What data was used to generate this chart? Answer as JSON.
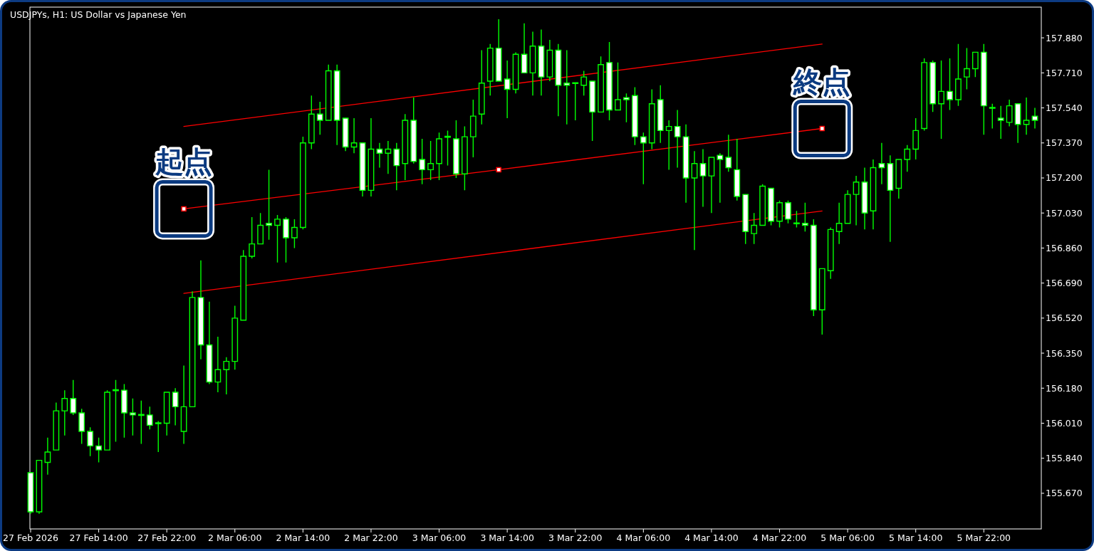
{
  "chart_data": {
    "type": "candlestick",
    "title": "USDJPYs, H1:  US Dollar vs Japanese Yen",
    "color": "#00ff00",
    "categories": [
      "27 Feb 2026",
      null,
      null,
      null,
      null,
      null,
      null,
      null,
      "27 Feb 14:00",
      null,
      null,
      null,
      null,
      null,
      null,
      null,
      "27 Feb 22:00",
      null,
      null,
      null,
      null,
      null,
      null,
      null,
      "2 Mar 06:00",
      null,
      null,
      null,
      null,
      null,
      null,
      null,
      "2 Mar 14:00",
      null,
      null,
      null,
      null,
      null,
      null,
      null,
      "2 Mar 22:00",
      null,
      null,
      null,
      null,
      null,
      null,
      null,
      "3 Mar 06:00",
      null,
      null,
      null,
      null,
      null,
      null,
      null,
      "3 Mar 14:00",
      null,
      null,
      null,
      null,
      null,
      null,
      null,
      "3 Mar 22:00",
      null,
      null,
      null,
      null,
      null,
      null,
      null,
      "4 Mar 06:00",
      null,
      null,
      null,
      null,
      null,
      null,
      null,
      "4 Mar 14:00",
      null,
      null,
      null,
      null,
      null,
      null,
      null,
      "4 Mar 22:00",
      null,
      null,
      null,
      null,
      null,
      null,
      null,
      "5 Mar 06:00",
      null,
      null,
      null,
      null,
      null,
      null,
      null,
      "5 Mar 14:00",
      null,
      null,
      null,
      null,
      null,
      null,
      null,
      "5 Mar 22:00",
      null,
      null,
      null,
      null,
      null,
      null
    ],
    "ohlc": [
      [
        155.77,
        155.77,
        155.57,
        155.58
      ],
      [
        155.58,
        155.83,
        155.57,
        155.83
      ],
      [
        155.82,
        155.94,
        155.76,
        155.87
      ],
      [
        155.88,
        156.11,
        155.88,
        156.07
      ],
      [
        156.07,
        156.17,
        155.95,
        156.13
      ],
      [
        156.13,
        156.22,
        156.05,
        156.06
      ],
      [
        156.06,
        156.08,
        155.91,
        155.97
      ],
      [
        155.97,
        155.99,
        155.85,
        155.9
      ],
      [
        155.9,
        155.94,
        155.82,
        155.88
      ],
      [
        155.88,
        156.17,
        155.88,
        156.16
      ],
      [
        156.17,
        156.22,
        155.92,
        156.17
      ],
      [
        156.17,
        156.2,
        155.94,
        156.06
      ],
      [
        156.06,
        156.13,
        155.95,
        156.05
      ],
      [
        156.05,
        156.12,
        155.91,
        156.05
      ],
      [
        156.05,
        156.09,
        155.98,
        156.0
      ],
      [
        156.01,
        156.02,
        155.87,
        156.01
      ],
      [
        156.01,
        156.16,
        155.95,
        156.16
      ],
      [
        156.16,
        156.18,
        156.0,
        156.09
      ],
      [
        155.97,
        156.29,
        155.91,
        156.09
      ],
      [
        156.09,
        156.65,
        156.09,
        156.62
      ],
      [
        156.62,
        156.8,
        156.32,
        156.39
      ],
      [
        156.39,
        156.6,
        156.2,
        156.21
      ],
      [
        156.21,
        156.43,
        156.16,
        156.27
      ],
      [
        156.27,
        156.33,
        156.15,
        156.31
      ],
      [
        156.31,
        156.58,
        156.27,
        156.52
      ],
      [
        156.51,
        156.85,
        156.51,
        156.82
      ],
      [
        156.82,
        157.01,
        156.81,
        156.88
      ],
      [
        156.88,
        157.03,
        156.88,
        156.97
      ],
      [
        156.98,
        157.24,
        156.9,
        156.97
      ],
      [
        156.97,
        157.02,
        156.79,
        157.0
      ],
      [
        157.0,
        157.01,
        156.79,
        156.91
      ],
      [
        156.91,
        157.0,
        156.86,
        156.96
      ],
      [
        156.96,
        157.4,
        156.95,
        157.37
      ],
      [
        157.37,
        157.6,
        157.34,
        157.51
      ],
      [
        157.51,
        157.57,
        157.41,
        157.48
      ],
      [
        157.48,
        157.75,
        157.48,
        157.72
      ],
      [
        157.72,
        157.75,
        157.36,
        157.48
      ],
      [
        157.49,
        157.49,
        157.33,
        157.35
      ],
      [
        157.35,
        157.49,
        157.32,
        157.37
      ],
      [
        157.37,
        157.37,
        157.11,
        157.14
      ],
      [
        157.14,
        157.49,
        157.11,
        157.34
      ],
      [
        157.34,
        157.37,
        157.25,
        157.32
      ],
      [
        157.32,
        157.38,
        157.22,
        157.34
      ],
      [
        157.34,
        157.37,
        157.14,
        157.26
      ],
      [
        157.27,
        157.51,
        157.19,
        157.48
      ],
      [
        157.48,
        157.59,
        157.27,
        157.28
      ],
      [
        157.29,
        157.39,
        157.17,
        157.24
      ],
      [
        157.24,
        157.38,
        157.19,
        157.27
      ],
      [
        157.27,
        157.42,
        157.19,
        157.39
      ],
      [
        157.4,
        157.43,
        157.26,
        157.4
      ],
      [
        157.39,
        157.48,
        157.2,
        157.22
      ],
      [
        157.22,
        157.45,
        157.14,
        157.4
      ],
      [
        157.4,
        157.58,
        157.3,
        157.5
      ],
      [
        157.51,
        157.82,
        157.46,
        157.66
      ],
      [
        157.67,
        157.85,
        157.6,
        157.83
      ],
      [
        157.83,
        157.97,
        157.67,
        157.67
      ],
      [
        157.68,
        157.77,
        157.49,
        157.63
      ],
      [
        157.63,
        157.81,
        157.61,
        157.8
      ],
      [
        157.8,
        157.95,
        157.71,
        157.71
      ],
      [
        157.71,
        157.91,
        157.6,
        157.84
      ],
      [
        157.84,
        157.92,
        157.6,
        157.69
      ],
      [
        157.69,
        157.87,
        157.67,
        157.82
      ],
      [
        157.82,
        157.85,
        157.5,
        157.65
      ],
      [
        157.66,
        157.82,
        157.46,
        157.65
      ],
      [
        157.66,
        157.66,
        157.48,
        157.66
      ],
      [
        157.65,
        157.72,
        157.6,
        157.69
      ],
      [
        157.67,
        157.67,
        157.38,
        157.52
      ],
      [
        157.52,
        157.79,
        157.52,
        157.75
      ],
      [
        157.76,
        157.86,
        157.48,
        157.53
      ],
      [
        157.53,
        157.76,
        157.53,
        157.58
      ],
      [
        157.59,
        157.61,
        157.47,
        157.58
      ],
      [
        157.6,
        157.64,
        157.36,
        157.4
      ],
      [
        157.4,
        157.42,
        157.17,
        157.37
      ],
      [
        157.37,
        157.63,
        157.34,
        157.56
      ],
      [
        157.58,
        157.65,
        157.37,
        157.43
      ],
      [
        157.43,
        157.48,
        157.24,
        157.45
      ],
      [
        157.45,
        157.53,
        157.25,
        157.4
      ],
      [
        157.4,
        157.46,
        157.08,
        157.2
      ],
      [
        157.2,
        157.33,
        156.85,
        157.27
      ],
      [
        157.27,
        157.34,
        157.06,
        157.21
      ],
      [
        157.21,
        157.3,
        157.03,
        157.3
      ],
      [
        157.31,
        157.32,
        157.08,
        157.29
      ],
      [
        157.3,
        157.41,
        157.23,
        157.25
      ],
      [
        157.24,
        157.39,
        157.09,
        157.11
      ],
      [
        157.12,
        157.12,
        156.88,
        156.94
      ],
      [
        156.93,
        157.03,
        156.88,
        156.97
      ],
      [
        156.97,
        157.17,
        156.97,
        157.16
      ],
      [
        157.15,
        157.15,
        156.97,
        156.99
      ],
      [
        156.99,
        157.09,
        156.96,
        157.08
      ],
      [
        157.08,
        157.09,
        156.98,
        157.0
      ],
      [
        156.98,
        157.04,
        156.96,
        156.98
      ],
      [
        156.98,
        157.08,
        156.94,
        156.97
      ],
      [
        156.97,
        157.0,
        156.53,
        156.56
      ],
      [
        156.56,
        156.76,
        156.44,
        156.76
      ],
      [
        156.75,
        156.96,
        156.71,
        156.95
      ],
      [
        156.94,
        157.08,
        156.88,
        156.98
      ],
      [
        156.98,
        157.14,
        156.98,
        157.12
      ],
      [
        157.12,
        157.21,
        156.97,
        157.18
      ],
      [
        157.18,
        157.25,
        156.95,
        157.03
      ],
      [
        157.04,
        157.29,
        156.95,
        157.25
      ],
      [
        157.27,
        157.37,
        157.17,
        157.25
      ],
      [
        157.27,
        157.31,
        156.89,
        157.14
      ],
      [
        157.15,
        157.29,
        157.1,
        157.29
      ],
      [
        157.29,
        157.36,
        157.23,
        157.34
      ],
      [
        157.34,
        157.49,
        157.29,
        157.43
      ],
      [
        157.44,
        157.78,
        157.43,
        157.76
      ],
      [
        157.76,
        157.77,
        157.52,
        157.56
      ],
      [
        157.56,
        157.77,
        157.39,
        157.62
      ],
      [
        157.62,
        157.78,
        157.53,
        157.58
      ],
      [
        157.58,
        157.85,
        157.55,
        157.68
      ],
      [
        157.69,
        157.83,
        157.63,
        157.73
      ],
      [
        157.73,
        157.81,
        157.69,
        157.81
      ],
      [
        157.81,
        157.85,
        157.41,
        157.55
      ],
      [
        157.54,
        157.56,
        157.44,
        157.54
      ],
      [
        157.49,
        157.55,
        157.39,
        157.48
      ],
      [
        157.47,
        157.58,
        157.45,
        157.55
      ],
      [
        157.56,
        157.56,
        157.37,
        157.46
      ],
      [
        157.46,
        157.59,
        157.41,
        157.48
      ],
      [
        157.5,
        157.54,
        157.44,
        157.48
      ]
    ],
    "series": [
      {
        "type": "line",
        "color": "#ff0000",
        "values": [
          null,
          null,
          null,
          null,
          null,
          null,
          null,
          null,
          null,
          null,
          null,
          null,
          null,
          null,
          null,
          null,
          null,
          null,
          157.45,
          null,
          null,
          null,
          null,
          null,
          null,
          null,
          null,
          null,
          null,
          null,
          null,
          null,
          null,
          null,
          null,
          null,
          null,
          null,
          null,
          null,
          null,
          null,
          null,
          null,
          null,
          null,
          null,
          null,
          null,
          null,
          null,
          null,
          null,
          null,
          null,
          null,
          null,
          null,
          null,
          null,
          null,
          null,
          null,
          null,
          null,
          null,
          null,
          null,
          null,
          null,
          null,
          null,
          null,
          null,
          null,
          null,
          null,
          null,
          null,
          null,
          null,
          null,
          null,
          null,
          null,
          null,
          null,
          null,
          null,
          null,
          null,
          null,
          null,
          157.85,
          null,
          null,
          null,
          null,
          null,
          null,
          null,
          null,
          null,
          null,
          null,
          null,
          null,
          null,
          null,
          null,
          null,
          null,
          null,
          null,
          null,
          null,
          null,
          null,
          null
        ]
      },
      {
        "type": "line",
        "color": "#ff0000",
        "marker": "square",
        "values": [
          null,
          null,
          null,
          null,
          null,
          null,
          null,
          null,
          null,
          null,
          null,
          null,
          null,
          null,
          null,
          null,
          null,
          null,
          157.05,
          null,
          null,
          null,
          null,
          null,
          null,
          null,
          null,
          null,
          null,
          null,
          null,
          null,
          null,
          null,
          null,
          null,
          null,
          null,
          null,
          null,
          null,
          null,
          null,
          null,
          null,
          null,
          null,
          null,
          null,
          null,
          null,
          null,
          null,
          null,
          null,
          157.24,
          null,
          null,
          null,
          null,
          null,
          null,
          null,
          null,
          null,
          null,
          null,
          null,
          null,
          null,
          null,
          null,
          null,
          null,
          null,
          null,
          null,
          null,
          null,
          null,
          null,
          null,
          null,
          null,
          null,
          null,
          null,
          null,
          null,
          null,
          null,
          null,
          null,
          157.44,
          null,
          null,
          null,
          null,
          null,
          null,
          null,
          null,
          null,
          null,
          null,
          null,
          null,
          null,
          null,
          null,
          null,
          null,
          null,
          null,
          null,
          null,
          null,
          null,
          null
        ]
      },
      {
        "type": "line",
        "color": "#ff0000",
        "values": [
          null,
          null,
          null,
          null,
          null,
          null,
          null,
          null,
          null,
          null,
          null,
          null,
          null,
          null,
          null,
          null,
          null,
          null,
          156.64,
          null,
          null,
          null,
          null,
          null,
          null,
          null,
          null,
          null,
          null,
          null,
          null,
          null,
          null,
          null,
          null,
          null,
          null,
          null,
          null,
          null,
          null,
          null,
          null,
          null,
          null,
          null,
          null,
          null,
          null,
          null,
          null,
          null,
          null,
          null,
          null,
          null,
          null,
          null,
          null,
          null,
          null,
          null,
          null,
          null,
          null,
          null,
          null,
          null,
          null,
          null,
          null,
          null,
          null,
          null,
          null,
          null,
          null,
          null,
          null,
          null,
          null,
          null,
          null,
          null,
          null,
          null,
          null,
          null,
          null,
          null,
          null,
          null,
          null,
          157.04,
          null,
          null,
          null,
          null,
          null,
          null,
          null,
          null,
          null,
          null,
          null,
          null,
          null,
          null,
          null,
          null,
          null,
          null,
          null,
          null,
          null,
          null,
          null,
          null,
          null
        ]
      }
    ],
    "annotations": [
      "起点",
      "終点"
    ],
    "ylim": [
      155.497,
      158.029
    ],
    "yticks": [
      {
        "value": 155.67,
        "label": "155.670"
      },
      {
        "value": 155.84,
        "label": "155.840"
      },
      {
        "value": 156.01,
        "label": "156.010"
      },
      {
        "value": 156.18,
        "label": "156.180"
      },
      {
        "value": 156.35,
        "label": "156.350"
      },
      {
        "value": 156.52,
        "label": "156.520"
      },
      {
        "value": 156.69,
        "label": "156.690"
      },
      {
        "value": 156.86,
        "label": "156.860"
      },
      {
        "value": 157.03,
        "label": "157.030"
      },
      {
        "value": 157.2,
        "label": "157.200"
      },
      {
        "value": 157.37,
        "label": "157.370"
      },
      {
        "value": 157.54,
        "label": "157.540"
      },
      {
        "value": 157.71,
        "label": "157.710"
      },
      {
        "value": 157.88,
        "label": "157.880"
      }
    ]
  }
}
